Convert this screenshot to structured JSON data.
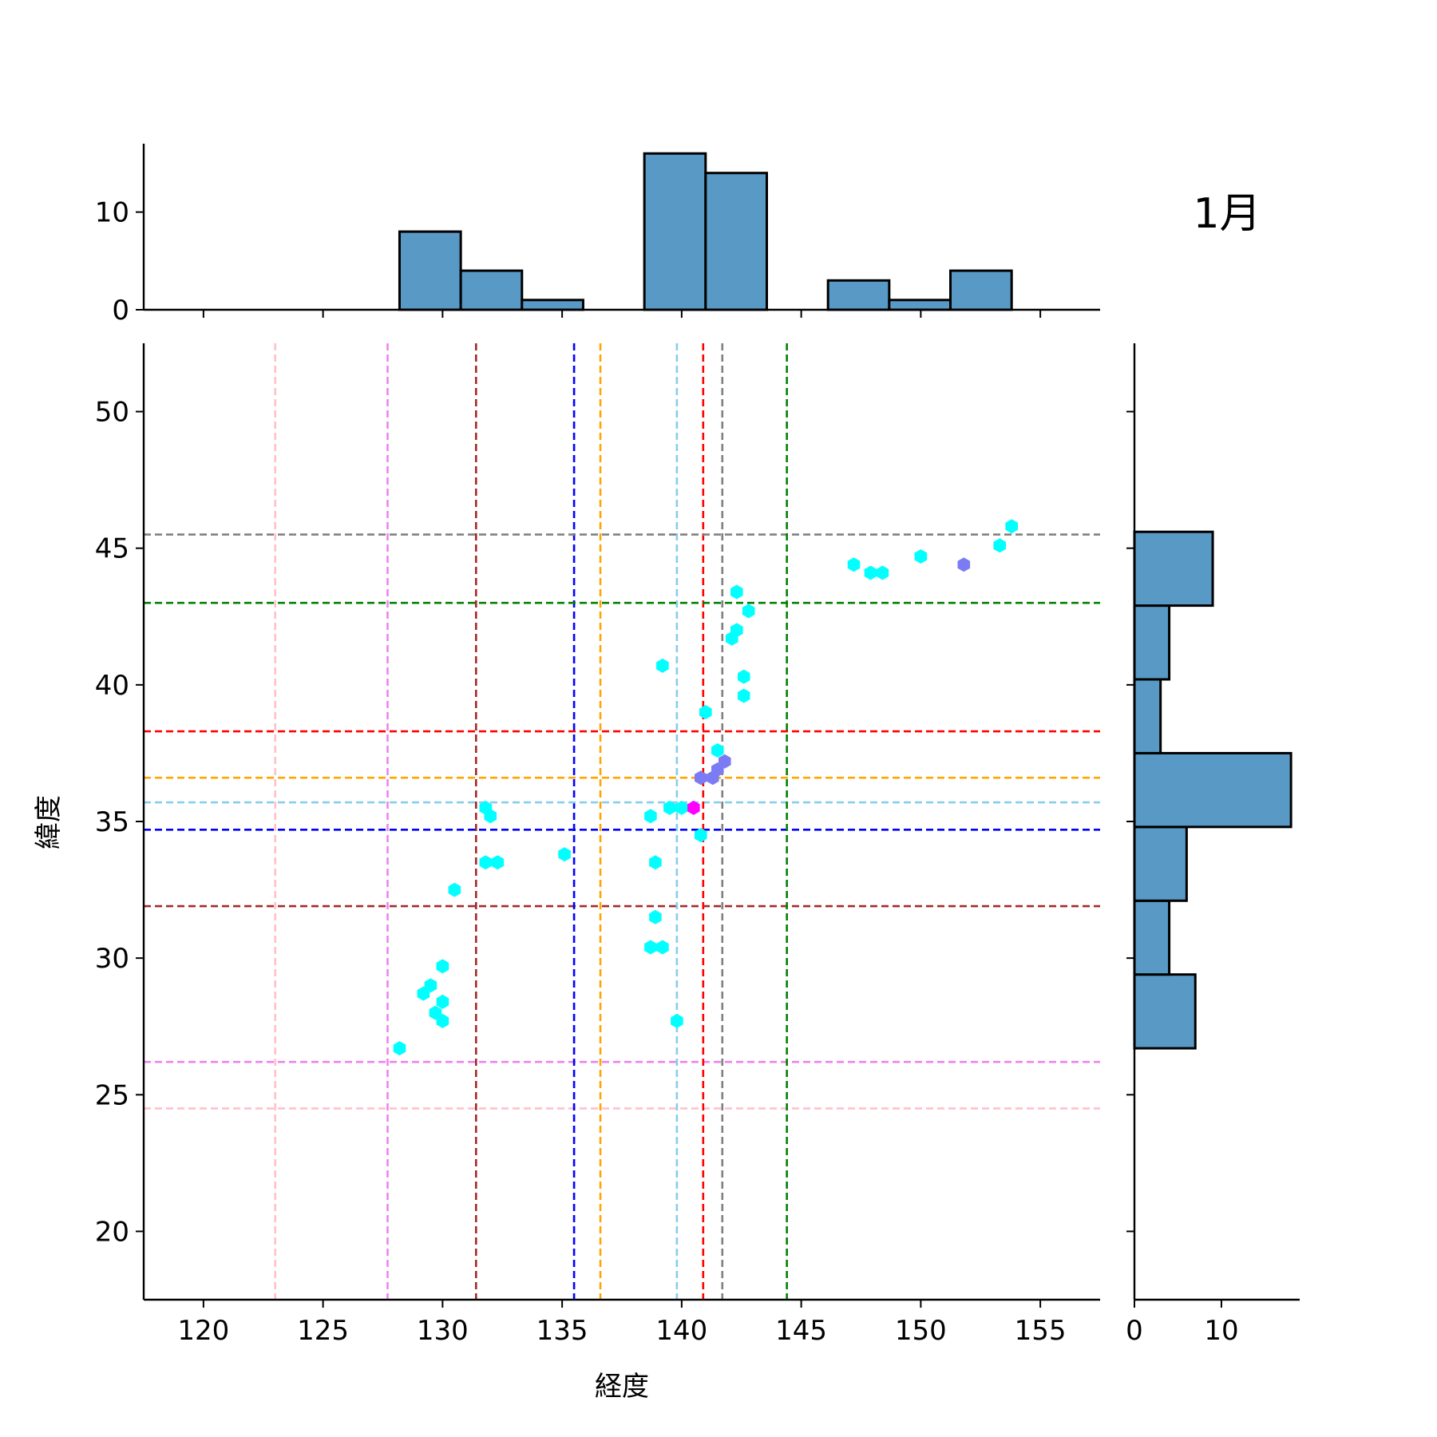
{
  "chart_data": {
    "type": "scatter",
    "title": "1月",
    "xlabel": "経度",
    "ylabel": "緯度",
    "xlim": [
      117.5,
      157.5
    ],
    "ylim": [
      17.5,
      52.5
    ],
    "xticks": [
      120,
      125,
      130,
      135,
      140,
      145,
      150,
      155
    ],
    "yticks": [
      20,
      25,
      30,
      35,
      40,
      45,
      50
    ],
    "grid": false,
    "hexbin": {
      "colors": {
        "single": "#00ffff",
        "double": "#7b7bf4",
        "multi": "#ff00ff"
      },
      "points": [
        {
          "x": 128.2,
          "y": 26.7,
          "c": "single"
        },
        {
          "x": 129.2,
          "y": 28.7,
          "c": "single"
        },
        {
          "x": 129.5,
          "y": 29.0,
          "c": "single"
        },
        {
          "x": 130.0,
          "y": 29.7,
          "c": "single"
        },
        {
          "x": 129.7,
          "y": 28.0,
          "c": "single"
        },
        {
          "x": 130.0,
          "y": 28.4,
          "c": "single"
        },
        {
          "x": 130.0,
          "y": 27.7,
          "c": "single"
        },
        {
          "x": 130.5,
          "y": 32.5,
          "c": "single"
        },
        {
          "x": 131.8,
          "y": 35.5,
          "c": "single"
        },
        {
          "x": 132.0,
          "y": 35.2,
          "c": "single"
        },
        {
          "x": 131.8,
          "y": 33.5,
          "c": "single"
        },
        {
          "x": 132.3,
          "y": 33.5,
          "c": "single"
        },
        {
          "x": 135.1,
          "y": 33.8,
          "c": "single"
        },
        {
          "x": 138.7,
          "y": 35.2,
          "c": "single"
        },
        {
          "x": 138.9,
          "y": 33.5,
          "c": "single"
        },
        {
          "x": 138.9,
          "y": 31.5,
          "c": "single"
        },
        {
          "x": 138.7,
          "y": 30.4,
          "c": "single"
        },
        {
          "x": 139.2,
          "y": 30.4,
          "c": "single"
        },
        {
          "x": 139.8,
          "y": 27.7,
          "c": "single"
        },
        {
          "x": 139.2,
          "y": 40.7,
          "c": "single"
        },
        {
          "x": 139.5,
          "y": 35.5,
          "c": "single"
        },
        {
          "x": 140.0,
          "y": 35.5,
          "c": "single"
        },
        {
          "x": 140.8,
          "y": 34.5,
          "c": "single"
        },
        {
          "x": 141.0,
          "y": 39.0,
          "c": "single"
        },
        {
          "x": 141.5,
          "y": 37.6,
          "c": "single"
        },
        {
          "x": 142.1,
          "y": 41.7,
          "c": "single"
        },
        {
          "x": 142.3,
          "y": 42.0,
          "c": "single"
        },
        {
          "x": 142.3,
          "y": 43.4,
          "c": "single"
        },
        {
          "x": 142.8,
          "y": 42.7,
          "c": "single"
        },
        {
          "x": 142.6,
          "y": 40.3,
          "c": "single"
        },
        {
          "x": 142.6,
          "y": 39.6,
          "c": "single"
        },
        {
          "x": 147.2,
          "y": 44.4,
          "c": "single"
        },
        {
          "x": 147.9,
          "y": 44.1,
          "c": "single"
        },
        {
          "x": 148.4,
          "y": 44.1,
          "c": "single"
        },
        {
          "x": 150.0,
          "y": 44.7,
          "c": "single"
        },
        {
          "x": 153.3,
          "y": 45.1,
          "c": "single"
        },
        {
          "x": 153.8,
          "y": 45.8,
          "c": "single"
        },
        {
          "x": 140.8,
          "y": 36.6,
          "c": "double"
        },
        {
          "x": 141.3,
          "y": 36.6,
          "c": "double"
        },
        {
          "x": 141.5,
          "y": 36.9,
          "c": "double"
        },
        {
          "x": 141.8,
          "y": 37.2,
          "c": "double"
        },
        {
          "x": 151.8,
          "y": 44.4,
          "c": "double"
        },
        {
          "x": 140.5,
          "y": 35.5,
          "c": "multi"
        }
      ]
    },
    "reference_lines": [
      {
        "x": 123.0,
        "y": 24.5,
        "color": "#ffc0cb"
      },
      {
        "x": 127.7,
        "y": 26.2,
        "color": "#ee82ee"
      },
      {
        "x": 131.4,
        "y": 31.9,
        "color": "#a52a2a"
      },
      {
        "x": 135.5,
        "y": 34.7,
        "color": "#0000ff"
      },
      {
        "x": 136.6,
        "y": 36.6,
        "color": "#ffa500"
      },
      {
        "x": 139.8,
        "y": 35.7,
        "color": "#87ceeb"
      },
      {
        "x": 140.9,
        "y": 38.3,
        "color": "#ff0000"
      },
      {
        "x": 141.7,
        "y": 45.5,
        "color": "#808080"
      },
      {
        "x": 144.4,
        "y": 43.0,
        "color": "#008000"
      }
    ],
    "x_histogram": {
      "bin_edges": [
        128.2,
        130.76,
        133.32,
        135.88,
        138.44,
        141.0,
        143.56,
        146.12,
        148.68,
        151.24,
        153.8
      ],
      "counts": [
        8,
        4,
        1,
        0,
        16,
        14,
        0,
        3,
        1,
        4
      ],
      "ylim": [
        0,
        17
      ],
      "ticks": [
        0,
        10
      ]
    },
    "y_histogram": {
      "bin_edges": [
        26.7,
        29.4,
        32.1,
        34.8,
        37.5,
        40.2,
        42.9,
        45.6
      ],
      "counts": [
        7,
        4,
        6,
        18,
        3,
        4,
        9
      ],
      "xlim": [
        0,
        19
      ],
      "ticks": [
        0,
        10
      ]
    },
    "bar_color": "#5899c6"
  }
}
